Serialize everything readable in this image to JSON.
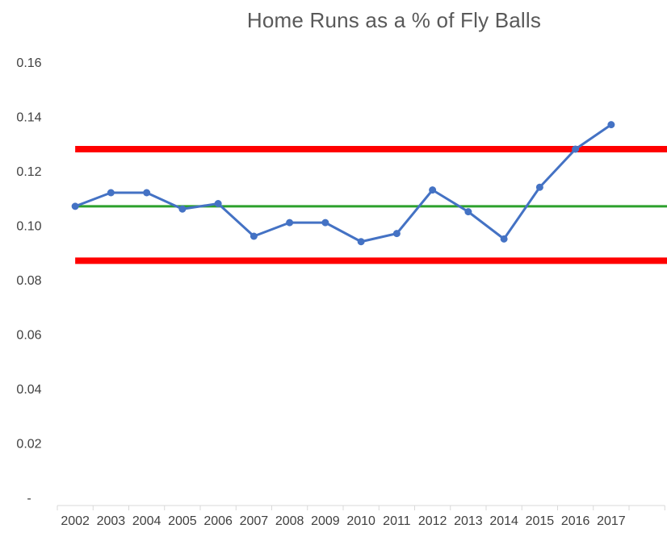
{
  "chart_data": {
    "type": "line",
    "title": "Home Runs as a % of Fly Balls",
    "xlabel": "",
    "ylabel": "",
    "categories": [
      "2002",
      "2003",
      "2004",
      "2005",
      "2006",
      "2007",
      "2008",
      "2009",
      "2010",
      "2011",
      "2012",
      "2013",
      "2014",
      "2015",
      "2016",
      "2017"
    ],
    "y_tick_labels": [
      "-",
      "0.02",
      "0.04",
      "0.06",
      "0.08",
      "0.10",
      "0.12",
      "0.14",
      "0.16"
    ],
    "ylim": [
      0,
      0.16
    ],
    "grid": false,
    "series": [
      {
        "values": [
          0.107,
          0.112,
          0.112,
          0.106,
          0.108,
          0.096,
          0.101,
          0.101,
          0.094,
          0.097,
          0.113,
          0.105,
          0.095,
          0.114,
          0.128,
          0.137
        ],
        "color": "#4472C4",
        "markers": true
      }
    ],
    "reference_lines": [
      {
        "value": 0.128,
        "color": "#FF0000",
        "role": "upper limit"
      },
      {
        "value": 0.107,
        "color": "#2CA02C",
        "role": "average"
      },
      {
        "value": 0.087,
        "color": "#FF0000",
        "role": "lower limit"
      }
    ]
  }
}
